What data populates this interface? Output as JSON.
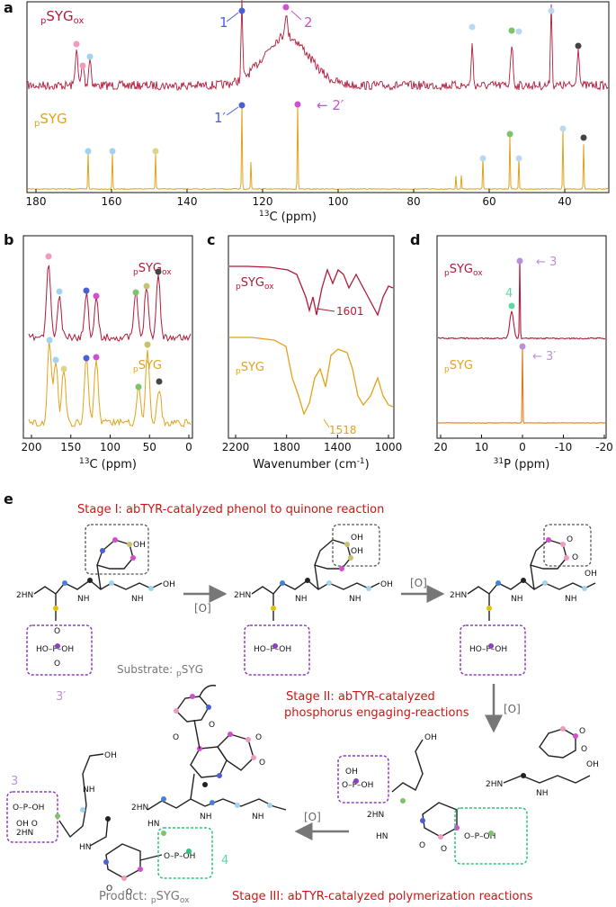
{
  "panel_a": {
    "label": "a",
    "top_sample": "pSYGox",
    "bottom_sample": "pSYG",
    "xlabel": "13C (ppm)",
    "ticks": [
      "180",
      "160",
      "140",
      "120",
      "100",
      "80",
      "60",
      "40"
    ],
    "markers": {
      "m1": "1",
      "m2": "2",
      "m1p": "1′",
      "m2p": "2′"
    }
  },
  "panel_b": {
    "label": "b",
    "top_sample": "pSYGox",
    "bottom_sample": "pSYG",
    "xlabel": "13C (ppm)",
    "ticks": [
      "200",
      "150",
      "100",
      "50",
      "0"
    ]
  },
  "panel_c": {
    "label": "c",
    "top_sample": "pSYGox",
    "bottom_sample": "pSYG",
    "xlabel": "Wavenumber (cm-1)",
    "ticks": [
      "2200",
      "1800",
      "1400",
      "1000"
    ],
    "annotations": {
      "top": "1601",
      "bottom": "1518"
    }
  },
  "panel_d": {
    "label": "d",
    "top_sample": "pSYGox",
    "bottom_sample": "pSYG",
    "xlabel": "31P (ppm)",
    "ticks": [
      "20",
      "10",
      "0",
      "-10",
      "-20"
    ],
    "markers": {
      "m3": "3",
      "m4": "4",
      "m3p": "3′"
    }
  },
  "panel_e": {
    "label": "e",
    "stage1": "Stage I: abTYR-catalyzed phenol to quinone reaction",
    "stage2_line1": "Stage II: abTYR-catalyzed",
    "stage2_line2": "phosphorus engaging-reactions",
    "stage3": "Stage III: abTYR-catalyzed polymerization reactions",
    "oxidant": "[O]",
    "substrate": "Substrate: pSYG",
    "product": "Product: pSYGox",
    "label_3p": "3′",
    "label_3": "3",
    "label_4": "4"
  },
  "colors": {
    "ox": "#b11b3b",
    "syg": "#e2a21b",
    "stage_text": "#d31313",
    "purple_box": "#8b3fc1",
    "green_box": "#2ec47a",
    "gray_box": "#555555"
  }
}
